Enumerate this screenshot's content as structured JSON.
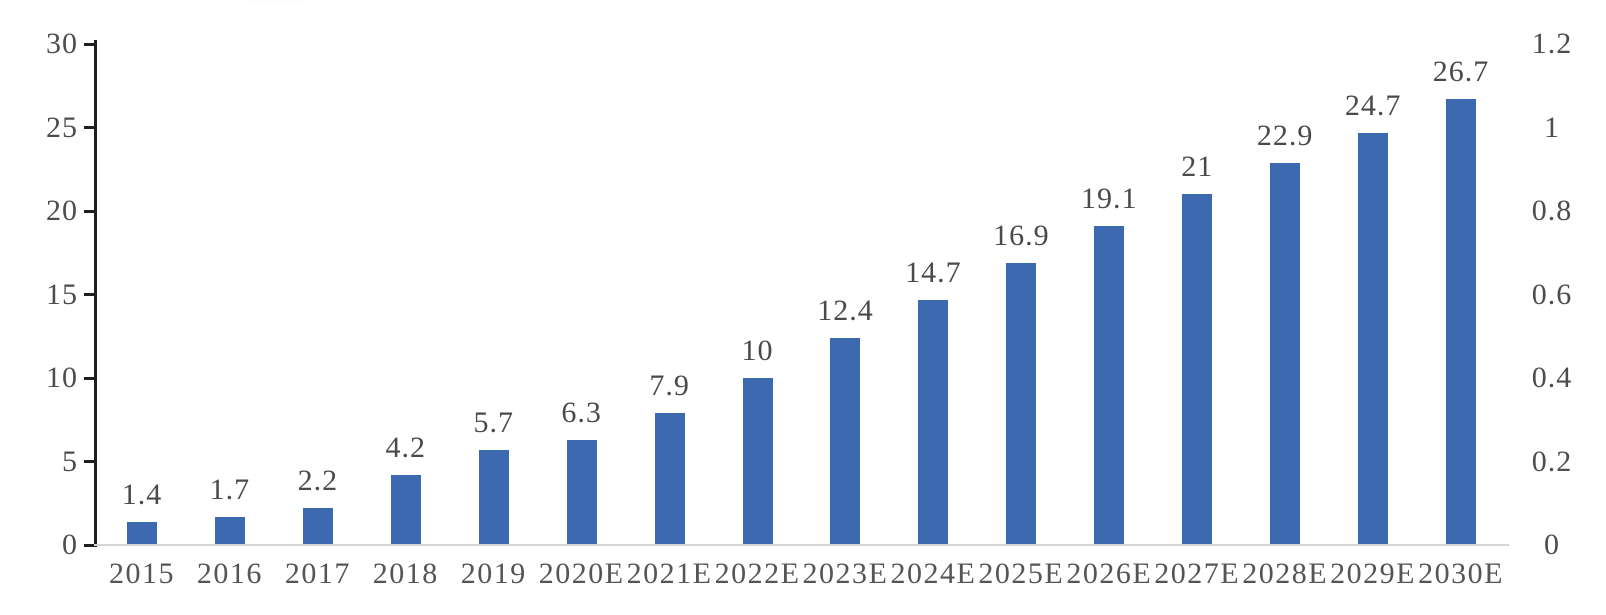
{
  "chart_data": {
    "type": "bar",
    "categories": [
      "2015",
      "2016",
      "2017",
      "2018",
      "2019",
      "2020E",
      "2021E",
      "2022E",
      "2023E",
      "2024E",
      "2025E",
      "2026E",
      "2027E",
      "2028E",
      "2029E",
      "2030E"
    ],
    "values": [
      1.4,
      1.7,
      2.2,
      4.2,
      5.7,
      6.3,
      7.9,
      10,
      12.4,
      14.7,
      16.9,
      19.1,
      21,
      22.9,
      24.7,
      26.7
    ],
    "value_labels": [
      "1.4",
      "1.7",
      "2.2",
      "4.2",
      "5.7",
      "6.3",
      "7.9",
      "10",
      "12.4",
      "14.7",
      "16.9",
      "19.1",
      "21",
      "22.9",
      "24.7",
      "26.7"
    ],
    "left_axis": {
      "min": 0,
      "max": 30,
      "tick_values": [
        30,
        25,
        20,
        15,
        10,
        5,
        0
      ],
      "tick_labels": [
        "30",
        "25",
        "20",
        "15",
        "10",
        "5",
        "0"
      ]
    },
    "right_axis": {
      "min": 0,
      "max": 1.2,
      "tick_values": [
        1.2,
        1,
        0.8,
        0.6,
        0.4,
        0.2,
        0
      ],
      "tick_labels": [
        "1.2",
        "1",
        "0.8",
        "0.6",
        "0.4",
        "0.2",
        "0"
      ]
    },
    "grid": false,
    "legend": "none",
    "colors": {
      "bar": "#3c69b0",
      "left_axis_line": "#1f1f1f",
      "bottom_axis_line": "#d6d6d6",
      "tick_label": "#4d4d4d",
      "value_label": "#4a4a4a"
    }
  }
}
